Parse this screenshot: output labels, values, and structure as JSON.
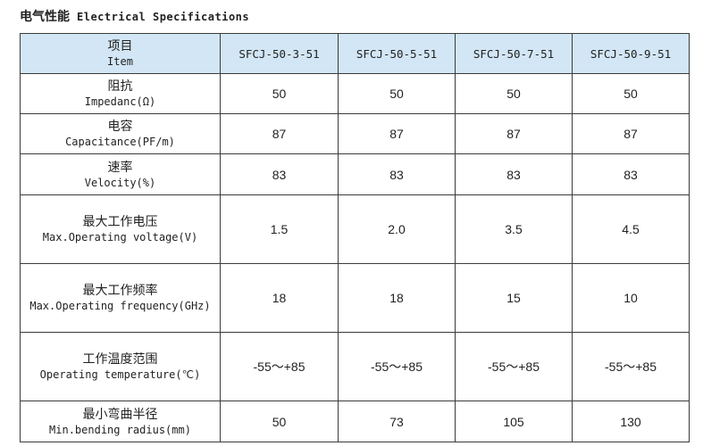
{
  "title": {
    "cn": "电气性能",
    "en": "Electrical Specifications"
  },
  "colors": {
    "header_bg": "#d2e6f5",
    "border": "#3a3a3a",
    "text": "#222222"
  },
  "table": {
    "header": {
      "item_cn": "项目",
      "item_en": "Item",
      "models": [
        "SFCJ-50-3-51",
        "SFCJ-50-5-51",
        "SFCJ-50-7-51",
        "SFCJ-50-9-51"
      ]
    },
    "rows": [
      {
        "cn": "阻抗",
        "en": "Impedanc(Ω)",
        "values": [
          "50",
          "50",
          "50",
          "50"
        ]
      },
      {
        "cn": "电容",
        "en": "Capacitance(PF/m)",
        "values": [
          "87",
          "87",
          "87",
          "87"
        ]
      },
      {
        "cn": "速率",
        "en": "Velocity(%)",
        "values": [
          "83",
          "83",
          "83",
          "83"
        ]
      },
      {
        "cn": "最大工作电压",
        "en": "Max.Operating voltage(V)",
        "values": [
          "1.5",
          "2.0",
          "3.5",
          "4.5"
        ]
      },
      {
        "cn": "最大工作频率",
        "en": "Max.Operating frequency(GHz)",
        "values": [
          "18",
          "18",
          "15",
          "10"
        ]
      },
      {
        "cn": "工作温度范围",
        "en": "Operating temperature(℃)",
        "values": [
          "-55～+85",
          "-55～+85",
          "-55～+85",
          "-55～+85"
        ]
      },
      {
        "cn": "最小弯曲半径",
        "en": "Min.bending radius(mm)",
        "values": [
          "50",
          "73",
          "105",
          "130"
        ]
      }
    ]
  }
}
